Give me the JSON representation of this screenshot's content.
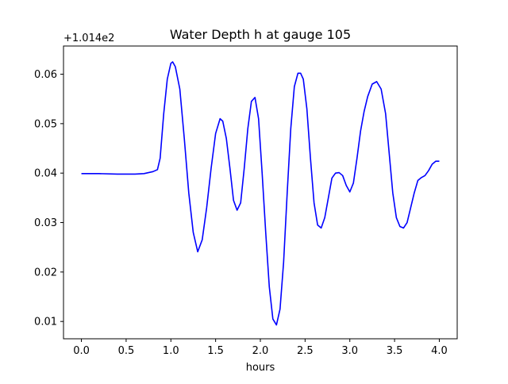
{
  "chart_data": {
    "type": "line",
    "title": "Water Depth h at gauge 105",
    "xlabel": "hours",
    "ylabel": "",
    "y_offset_label": "+1.014e2",
    "y_offset": 101.4,
    "xlim": [
      -0.2,
      4.2
    ],
    "ylim": [
      0.0065,
      0.0657
    ],
    "xticks": [
      0.0,
      0.5,
      1.0,
      1.5,
      2.0,
      2.5,
      3.0,
      3.5,
      4.0
    ],
    "xtick_labels": [
      "0.0",
      "0.5",
      "1.0",
      "1.5",
      "2.0",
      "2.5",
      "3.0",
      "3.5",
      "4.0"
    ],
    "yticks": [
      0.01,
      0.02,
      0.03,
      0.04,
      0.05,
      0.06
    ],
    "ytick_labels": [
      "0.01",
      "0.02",
      "0.03",
      "0.04",
      "0.05",
      "0.06"
    ],
    "grid": false,
    "legend": "none",
    "series": [
      {
        "color": "#0000ff",
        "x": [
          0.0,
          0.2,
          0.4,
          0.5,
          0.6,
          0.7,
          0.8,
          0.85,
          0.88,
          0.92,
          0.96,
          1.0,
          1.02,
          1.05,
          1.1,
          1.15,
          1.2,
          1.25,
          1.3,
          1.35,
          1.4,
          1.45,
          1.5,
          1.55,
          1.58,
          1.62,
          1.66,
          1.7,
          1.74,
          1.78,
          1.82,
          1.86,
          1.9,
          1.94,
          1.98,
          2.02,
          2.06,
          2.1,
          2.14,
          2.18,
          2.22,
          2.26,
          2.3,
          2.34,
          2.38,
          2.42,
          2.45,
          2.48,
          2.52,
          2.56,
          2.6,
          2.64,
          2.68,
          2.72,
          2.76,
          2.8,
          2.84,
          2.88,
          2.92,
          2.96,
          3.0,
          3.04,
          3.08,
          3.12,
          3.16,
          3.2,
          3.25,
          3.3,
          3.35,
          3.4,
          3.44,
          3.48,
          3.52,
          3.56,
          3.6,
          3.64,
          3.68,
          3.72,
          3.76,
          3.8,
          3.84,
          3.88,
          3.92,
          3.96,
          4.0
        ],
        "y": [
          0.0399,
          0.0399,
          0.0398,
          0.0398,
          0.0398,
          0.0399,
          0.0403,
          0.0407,
          0.043,
          0.052,
          0.059,
          0.0622,
          0.0625,
          0.0615,
          0.057,
          0.047,
          0.036,
          0.028,
          0.0241,
          0.0265,
          0.033,
          0.041,
          0.048,
          0.051,
          0.0505,
          0.047,
          0.041,
          0.0345,
          0.0325,
          0.034,
          0.041,
          0.049,
          0.0545,
          0.0553,
          0.051,
          0.04,
          0.028,
          0.017,
          0.0105,
          0.0093,
          0.0125,
          0.022,
          0.036,
          0.049,
          0.0575,
          0.0602,
          0.0602,
          0.059,
          0.053,
          0.043,
          0.034,
          0.0295,
          0.0289,
          0.031,
          0.035,
          0.039,
          0.04,
          0.0401,
          0.0395,
          0.0375,
          0.0362,
          0.038,
          0.043,
          0.0485,
          0.0525,
          0.0555,
          0.058,
          0.0585,
          0.057,
          0.052,
          0.044,
          0.036,
          0.031,
          0.0292,
          0.0289,
          0.03,
          0.033,
          0.036,
          0.0385,
          0.0391,
          0.0395,
          0.0405,
          0.0418,
          0.0424,
          0.0424
        ]
      }
    ]
  }
}
